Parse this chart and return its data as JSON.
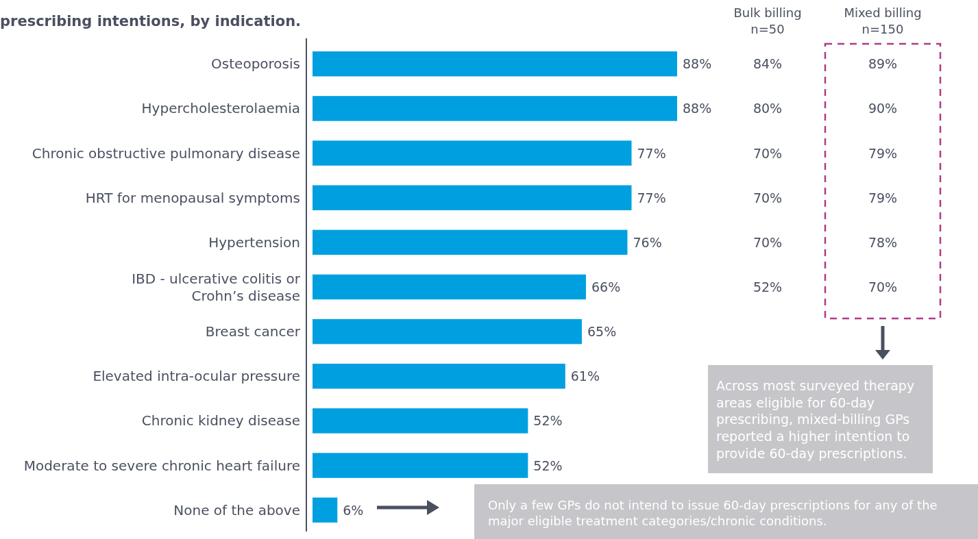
{
  "chart_data": {
    "type": "bar",
    "orientation": "horizontal",
    "title": "prescribing intentions, by indication.",
    "categories": [
      "Osteoporosis",
      "Hypercholesterolaemia",
      "Chronic obstructive pulmonary disease",
      "HRT for menopausal symptoms",
      "Hypertension",
      "IBD - ulcerative colitis or\nCrohn’s disease",
      "Breast cancer",
      "Elevated intra-ocular pressure",
      "Chronic kidney disease",
      "Moderate to severe chronic heart failure",
      "None of the above"
    ],
    "values": [
      88,
      88,
      77,
      77,
      76,
      66,
      65,
      61,
      52,
      52,
      6
    ],
    "color": "#00a0e0",
    "value_labels": [
      "88%",
      "88%",
      "77%",
      "77%",
      "76%",
      "66%",
      "65%",
      "61%",
      "52%",
      "52%",
      "6%"
    ],
    "annotations": [
      "Bulk billing\nn=50",
      "84%",
      "80%",
      "70%",
      "70%",
      "70%",
      "52%",
      "Mixed billing\nn=150",
      "89%",
      "90%",
      "79%",
      "79%",
      "78%",
      "70%",
      "Across most surveyed therapy areas eligible for 60-day prescribing, mixed-billing GPs reported a higher intention to provide 60-day prescriptions.",
      "Only a few GPs do not intend to issue 60-day prescriptions for any of the major eligible treatment categories/chronic conditions."
    ]
  }
}
